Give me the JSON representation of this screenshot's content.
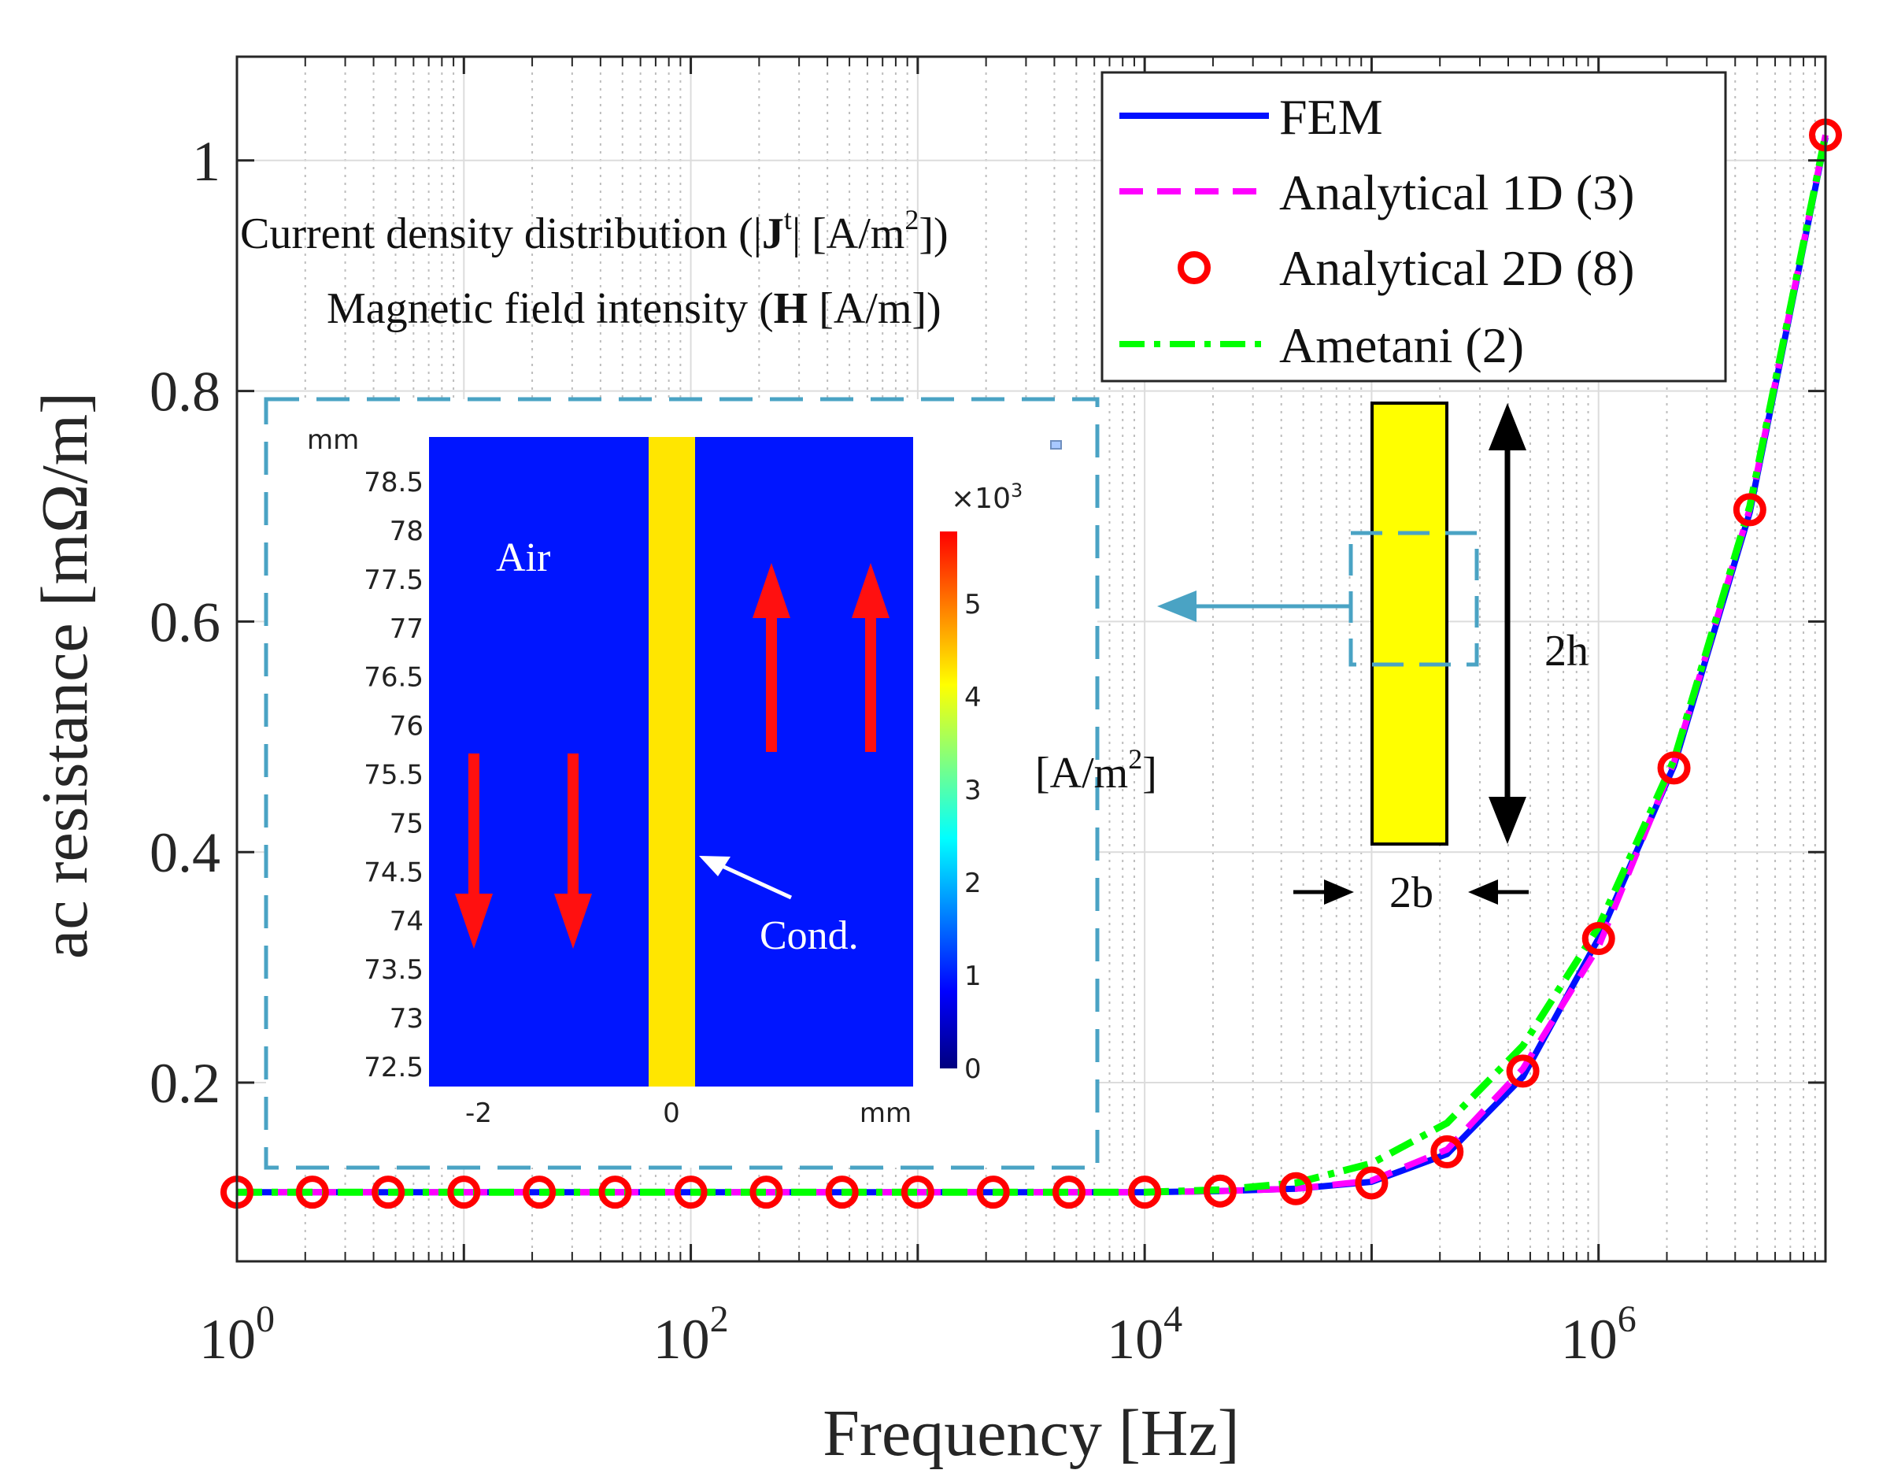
{
  "chart_data": {
    "type": "line",
    "xscale": "log",
    "xlabel": "Frequency [Hz]",
    "ylabel": "ac resistance [mΩ/m]",
    "xlim": [
      1,
      10000000
    ],
    "ylim": [
      0.045,
      1.09
    ],
    "grid": true,
    "legend_position": "top-right",
    "x_tick_labels": [
      {
        "value": 1,
        "base": "10",
        "exp": "0"
      },
      {
        "value": 100,
        "base": "10",
        "exp": "2"
      },
      {
        "value": 10000,
        "base": "10",
        "exp": "4"
      },
      {
        "value": 1000000,
        "base": "10",
        "exp": "6"
      }
    ],
    "y_ticks": [
      0.2,
      0.4,
      0.6,
      0.8,
      1
    ],
    "y_tick_labels": [
      "0.2",
      "0.4",
      "0.6",
      "0.8",
      "1"
    ],
    "series": [
      {
        "name": "FEM",
        "style": "solid",
        "color": "#0010ff",
        "x": [
          1,
          2.15,
          4.64,
          10,
          21.5,
          46.4,
          100,
          215,
          464,
          1000,
          2150,
          4640,
          10000,
          21500,
          46400,
          100000,
          215000,
          464000,
          1000000,
          2150000,
          4640000,
          10000000
        ],
        "y": [
          0.105,
          0.105,
          0.105,
          0.105,
          0.105,
          0.105,
          0.105,
          0.105,
          0.105,
          0.105,
          0.105,
          0.105,
          0.105,
          0.106,
          0.108,
          0.114,
          0.138,
          0.205,
          0.325,
          0.475,
          0.695,
          1.02
        ]
      },
      {
        "name": "Analytical 1D (3)",
        "style": "dashed",
        "color": "#ff00ff",
        "x": [
          1,
          2.15,
          4.64,
          10,
          21.5,
          46.4,
          100,
          215,
          464,
          1000,
          2150,
          4640,
          10000,
          21500,
          46400,
          100000,
          215000,
          464000,
          1000000,
          2150000,
          4640000,
          10000000
        ],
        "y": [
          0.105,
          0.105,
          0.105,
          0.105,
          0.105,
          0.105,
          0.105,
          0.105,
          0.105,
          0.105,
          0.105,
          0.105,
          0.105,
          0.106,
          0.108,
          0.115,
          0.142,
          0.212,
          0.318,
          0.478,
          0.698,
          1.022
        ]
      },
      {
        "name": "Analytical 2D (8)",
        "style": "markers",
        "color": "#ff0000",
        "x": [
          1,
          2.15,
          4.64,
          10,
          21.5,
          46.4,
          100,
          215,
          464,
          1000,
          2150,
          4640,
          10000,
          21500,
          46400,
          100000,
          215000,
          464000,
          1000000,
          2150000,
          4640000,
          10000000
        ],
        "y": [
          0.105,
          0.105,
          0.105,
          0.105,
          0.105,
          0.105,
          0.105,
          0.105,
          0.105,
          0.105,
          0.105,
          0.105,
          0.105,
          0.106,
          0.108,
          0.113,
          0.14,
          0.21,
          0.325,
          0.473,
          0.697,
          1.022
        ]
      },
      {
        "name": "Ametani (2)",
        "style": "dashdot",
        "color": "#00ff00",
        "x": [
          1,
          2.15,
          4.64,
          10,
          21.5,
          46.4,
          100,
          215,
          464,
          1000,
          2150,
          4640,
          10000,
          21500,
          46400,
          100000,
          215000,
          464000,
          1000000,
          2150000,
          4640000,
          10000000
        ],
        "y": [
          0.105,
          0.105,
          0.105,
          0.105,
          0.105,
          0.105,
          0.105,
          0.105,
          0.105,
          0.105,
          0.105,
          0.105,
          0.105,
          0.107,
          0.113,
          0.13,
          0.165,
          0.232,
          0.335,
          0.48,
          0.7,
          1.022
        ]
      }
    ],
    "annotations": {
      "title_line1_a": "Current density distribution (|",
      "title_line1_J": "J",
      "title_line1_t": "t",
      "title_line1_b": "| [A/m",
      "title_line1_sup": "2",
      "title_line1_c": "])",
      "title_line2_a": "Magnetic field intensity (",
      "title_line2_H": "H",
      "title_line2_b": " [A/m])",
      "units_label": "[A/m",
      "units_sup": "2",
      "units_end": "]",
      "label_2h": "2h",
      "label_2b": "2b"
    },
    "inset": {
      "type": "heatmap",
      "y_unit": "mm",
      "x_unit": "mm",
      "y_ticks": [
        "78.5",
        "78",
        "77.5",
        "77",
        "76.5",
        "76",
        "75.5",
        "75",
        "74.5",
        "74",
        "73.5",
        "73",
        "72.5"
      ],
      "x_ticks": [
        "-2",
        "0"
      ],
      "colorbar_multiplier_base": "×10",
      "colorbar_multiplier_exp": "3",
      "colorbar_ticks": [
        "0",
        "1",
        "2",
        "3",
        "4",
        "5"
      ],
      "colorbar_colors": [
        "#00007f",
        "#0000ff",
        "#0080ff",
        "#00ffff",
        "#80ff80",
        "#ffff00",
        "#ff8000",
        "#ff0000"
      ],
      "region_air_label": "Air",
      "region_conductor_label": "Cond.",
      "air_color": "#0015ff",
      "conductor_color": "#ffe600"
    }
  }
}
